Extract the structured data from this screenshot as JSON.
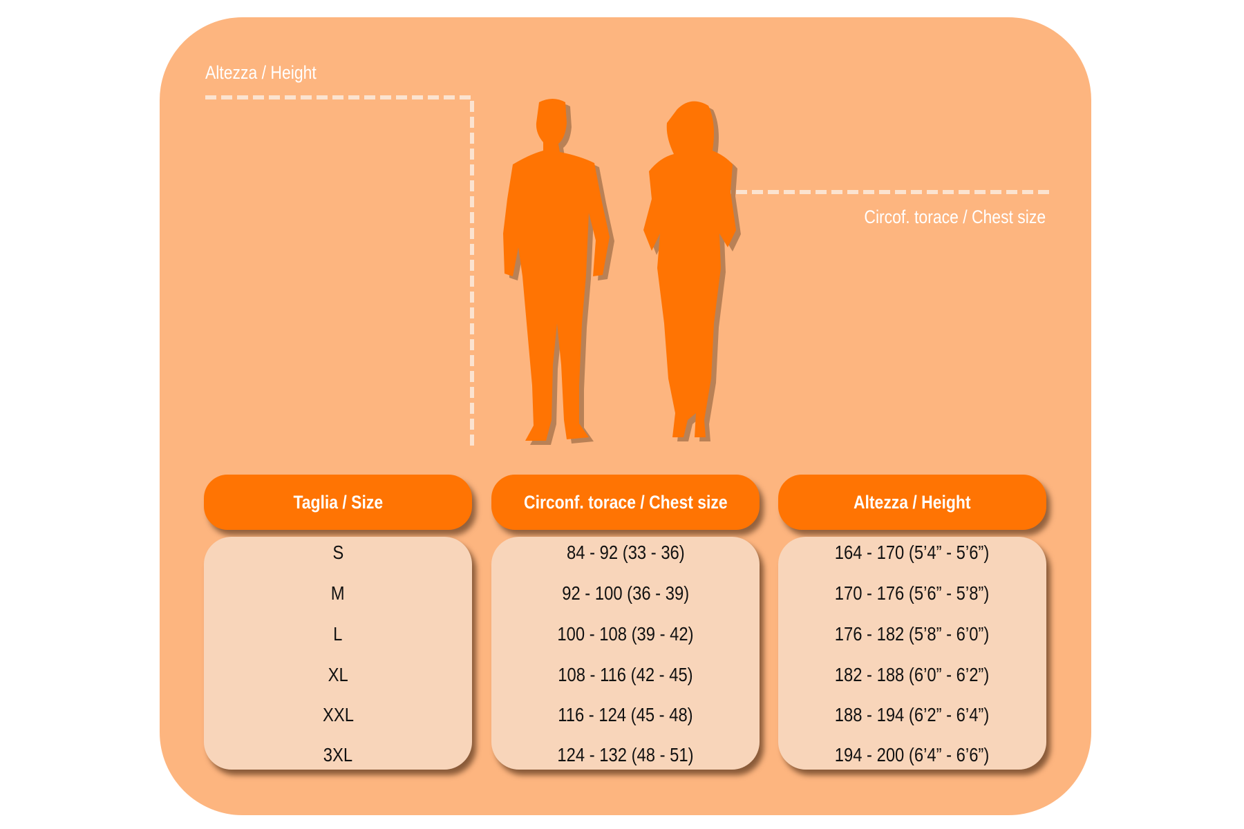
{
  "labels": {
    "height": "Altezza / Height",
    "chest": "Circof. torace / Chest size"
  },
  "colors": {
    "background": "#FDB57F",
    "header": "#FF7403",
    "body": "#F8D5BA",
    "silhouette": "#FF7403"
  },
  "table": {
    "headers": [
      "Taglia / Size",
      "Circonf. torace / Chest size",
      "Altezza / Height"
    ],
    "rows": [
      [
        "S",
        "84 - 92 (33 - 36)",
        "164 - 170 (5’4” - 5’6”)"
      ],
      [
        "M",
        "92 - 100 (36 - 39)",
        "170 - 176 (5’6” - 5’8”)"
      ],
      [
        "L",
        "100 - 108 (39 - 42)",
        "176 - 182 (5’8” - 6’0”)"
      ],
      [
        "XL",
        "108 - 116 (42 - 45)",
        "182 - 188 (6’0” - 6’2”)"
      ],
      [
        "XXL",
        "116 - 124 (45 - 48)",
        "188 - 194 (6’2” - 6’4”)"
      ],
      [
        "3XL",
        "124 - 132 (48 - 51)",
        "194 - 200 (6’4” - 6’6”)"
      ]
    ]
  }
}
